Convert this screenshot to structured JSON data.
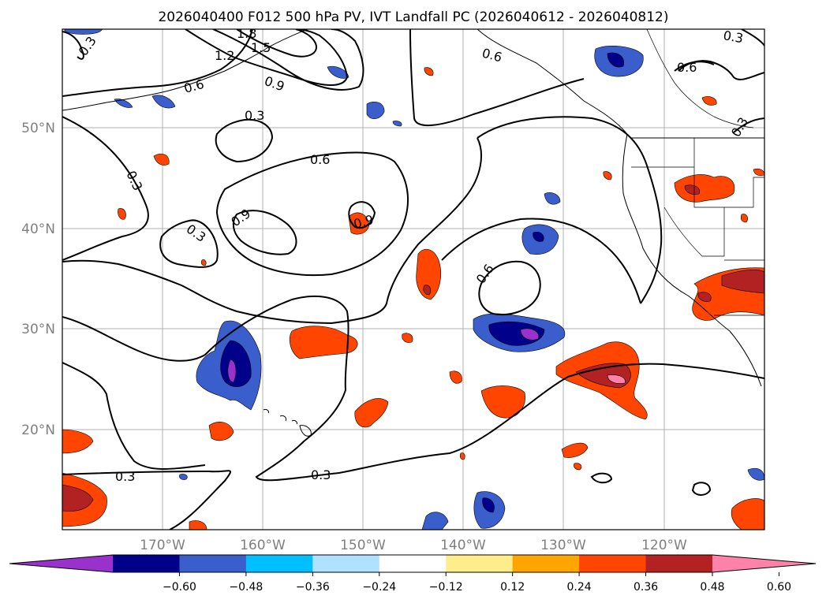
{
  "title": "2026040400 F012 500 hPa PV, IVT Landfall PC (2026040612 - 2026040812)",
  "map": {
    "lat_labels": [
      "50°N",
      "40°N",
      "30°N",
      "20°N"
    ],
    "lon_labels": [
      "170°W",
      "160°W",
      "150°W",
      "140°W",
      "130°W",
      "120°W"
    ]
  },
  "contour_labels": [
    "0.3",
    "1.8",
    "1.5",
    "1.2",
    "0.6",
    "0.9",
    "0.3",
    "0.6",
    "0.3",
    "0.9",
    "0.9",
    "0.3",
    "0.6",
    "0.6",
    "0.3",
    "0.3",
    "0.6",
    "0.3",
    "0.3"
  ],
  "colorbar": {
    "colors": [
      "#9932cc",
      "#00008b",
      "#3a5fcd",
      "#00bfff",
      "#b0e2ff",
      "#ffffff",
      "#ffec8b",
      "#ffa500",
      "#ff4500",
      "#b22222",
      "#ff82ab"
    ],
    "ticks": [
      "−0.60",
      "−0.48",
      "−0.36",
      "−0.24",
      "−0.12",
      "0.12",
      "0.24",
      "0.36",
      "0.48",
      "0.60"
    ]
  }
}
